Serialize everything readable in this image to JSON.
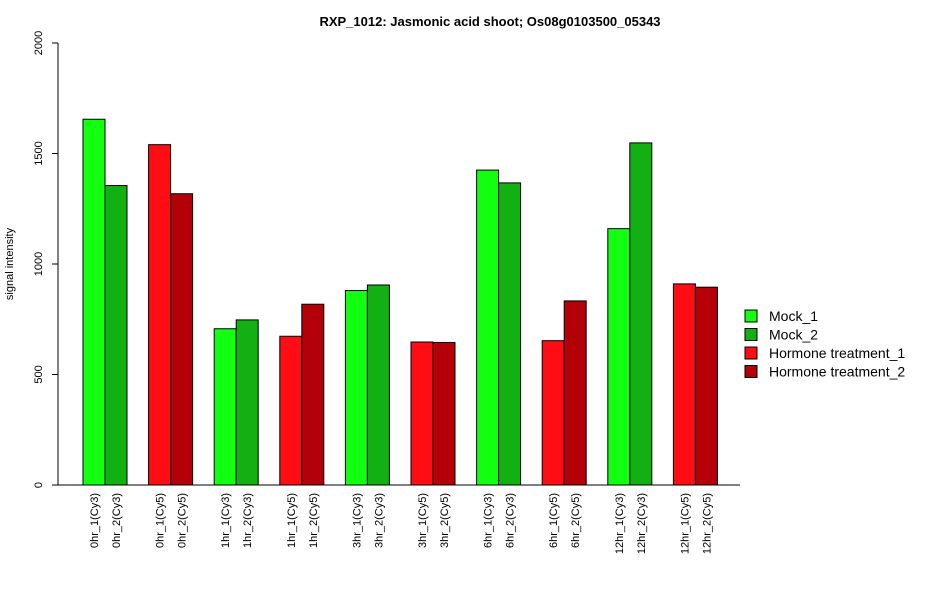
{
  "chart_data": {
    "type": "bar",
    "title": "RXP_1012: Jasmonic acid shoot; Os08g0103500_05343",
    "xlabel": "",
    "ylabel": "signal intensity",
    "ylim": [
      0,
      2000
    ],
    "yticks": [
      0,
      500,
      1000,
      1500,
      2000
    ],
    "grid": false,
    "legend_position": "right",
    "groups": [
      {
        "bars": [
          {
            "label": "0hr_1(Cy3)",
            "value": 1655,
            "series": 0
          },
          {
            "label": "0hr_2(Cy3)",
            "value": 1355,
            "series": 1
          }
        ]
      },
      {
        "bars": [
          {
            "label": "0hr_1(Cy5)",
            "value": 1540,
            "series": 2
          },
          {
            "label": "0hr_2(Cy5)",
            "value": 1318,
            "series": 3
          }
        ]
      },
      {
        "bars": [
          {
            "label": "1hr_1(Cy3)",
            "value": 707,
            "series": 0
          },
          {
            "label": "1hr_2(Cy3)",
            "value": 747,
            "series": 1
          }
        ]
      },
      {
        "bars": [
          {
            "label": "1hr_1(Cy5)",
            "value": 673,
            "series": 2
          },
          {
            "label": "1hr_2(Cy5)",
            "value": 818,
            "series": 3
          }
        ]
      },
      {
        "bars": [
          {
            "label": "3hr_1(Cy3)",
            "value": 880,
            "series": 0
          },
          {
            "label": "3hr_2(Cy3)",
            "value": 905,
            "series": 1
          }
        ]
      },
      {
        "bars": [
          {
            "label": "3hr_1(Cy5)",
            "value": 647,
            "series": 2
          },
          {
            "label": "3hr_2(Cy5)",
            "value": 645,
            "series": 3
          }
        ]
      },
      {
        "bars": [
          {
            "label": "6hr_1(Cy3)",
            "value": 1425,
            "series": 0
          },
          {
            "label": "6hr_2(Cy3)",
            "value": 1367,
            "series": 1
          }
        ]
      },
      {
        "bars": [
          {
            "label": "6hr_1(Cy5)",
            "value": 653,
            "series": 2
          },
          {
            "label": "6hr_2(Cy5)",
            "value": 833,
            "series": 3
          }
        ]
      },
      {
        "bars": [
          {
            "label": "12hr_1(Cy3)",
            "value": 1160,
            "series": 0
          },
          {
            "label": "12hr_2(Cy3)",
            "value": 1548,
            "series": 1
          }
        ]
      },
      {
        "bars": [
          {
            "label": "12hr_1(Cy5)",
            "value": 910,
            "series": 2
          },
          {
            "label": "12hr_2(Cy5)",
            "value": 895,
            "series": 3
          }
        ]
      }
    ],
    "series": [
      {
        "name": "Mock_1",
        "color": "#12ff12"
      },
      {
        "name": "Mock_2",
        "color": "#12b012"
      },
      {
        "name": "Hormone treatment_1",
        "color": "#ff0d14"
      },
      {
        "name": "Hormone treatment_2",
        "color": "#b40008"
      }
    ]
  }
}
